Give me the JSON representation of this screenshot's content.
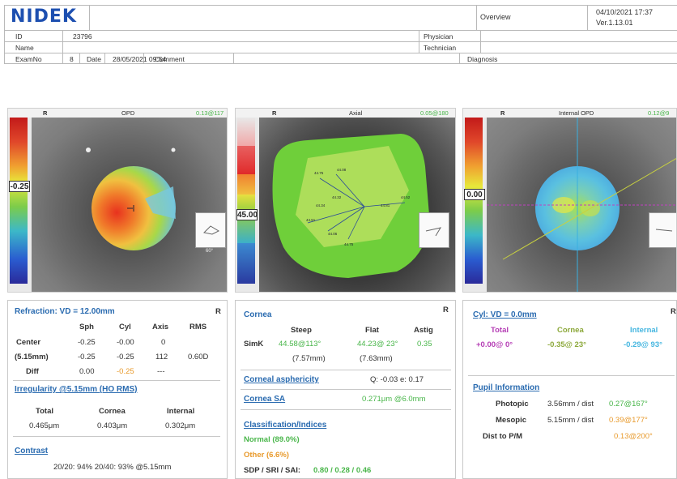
{
  "header": {
    "logo": "NIDEK",
    "overview_label": "Overview",
    "datetime": "04/10/2021 17:37",
    "version": "Ver.1.13.01",
    "id_label": "ID",
    "id_value": "23796",
    "name_label": "Name",
    "physician_label": "Physician",
    "technician_label": "Technician",
    "examno_label": "ExamNo",
    "examno_value": "8",
    "date_label": "Date",
    "date_value": "28/05/2021 09:54",
    "comment_label": "Comment",
    "diagnosis_label": "Diagnosis"
  },
  "maps": {
    "opd": {
      "eye": "R",
      "title": "OPD",
      "value": "0.13@117",
      "scale_value": "-0.25"
    },
    "axial": {
      "eye": "R",
      "title": "Axial",
      "value": "0.05@180",
      "scale_value": "45.00"
    },
    "internal": {
      "eye": "R",
      "title": "Internal OPD",
      "value": "0.12@9",
      "scale_value": "0.00"
    },
    "thumb_angle": "60°"
  },
  "refraction": {
    "title": "Refraction: VD = 12.00mm",
    "eye": "R",
    "col_sph": "Sph",
    "col_cyl": "Cyl",
    "col_axis": "Axis",
    "col_rms": "RMS",
    "center_label": "Center",
    "center_sph": "-0.25",
    "center_cyl": "-0.00",
    "center_axis": "0",
    "zone_label": "(5.15mm)",
    "zone_sph": "-0.25",
    "zone_cyl": "-0.25",
    "zone_axis": "112",
    "zone_rms": "0.60D",
    "diff_label": "Diff",
    "diff_sph": "0.00",
    "diff_cyl": "-0.25",
    "diff_axis": "---",
    "irregularity_title": "Irregularity @5.15mm (HO RMS)",
    "total_label": "Total",
    "cornea_label": "Cornea",
    "internal_label": "Internal",
    "total_value": "0.465μm",
    "cornea_value": "0.403μm",
    "internal_value": "0.302μm",
    "contrast_title": "Contrast",
    "contrast_value": "20/20: 94%  20/40: 93%  @5.15mm"
  },
  "cornea": {
    "title": "Cornea",
    "eye": "R",
    "col_steep": "Steep",
    "col_flat": "Flat",
    "col_astig": "Astig",
    "simk_label": "SimK",
    "steep_value": "44.58@113°",
    "flat_value": "44.23@ 23°",
    "astig_value": "0.35",
    "steep_mm": "(7.57mm)",
    "flat_mm": "(7.63mm)",
    "asphericity_title": "Corneal asphericity",
    "asphericity_value": "Q: -0.03  e: 0.17",
    "sa_title": "Cornea SA",
    "sa_value": "0.271μm @6.0mm",
    "classification_title": "Classification/Indices",
    "normal": "Normal (89.0%)",
    "other": "Other (6.6%)",
    "sdp_label": "SDP / SRI / SAI:",
    "sdp_values": "0.80 / 0.28 / 0.46"
  },
  "cyl": {
    "title": "Cyl: VD = 0.0mm",
    "eye": "R",
    "col_total": "Total",
    "col_cornea": "Cornea",
    "col_internal": "Internal",
    "total_value": "+0.00@  0°",
    "cornea_value": "-0.35@ 23°",
    "internal_value": "-0.29@ 93°",
    "pupil_title": "Pupil Information",
    "photopic_label": "Photopic",
    "photopic_value": "3.56mm / dist",
    "photopic_dist": "0.27@167°",
    "mesopic_label": "Mesopic",
    "mesopic_value": "5.15mm / dist",
    "mesopic_dist": "0.39@177°",
    "dist_label": "Dist to P/M",
    "dist_value": "0.13@200°"
  }
}
